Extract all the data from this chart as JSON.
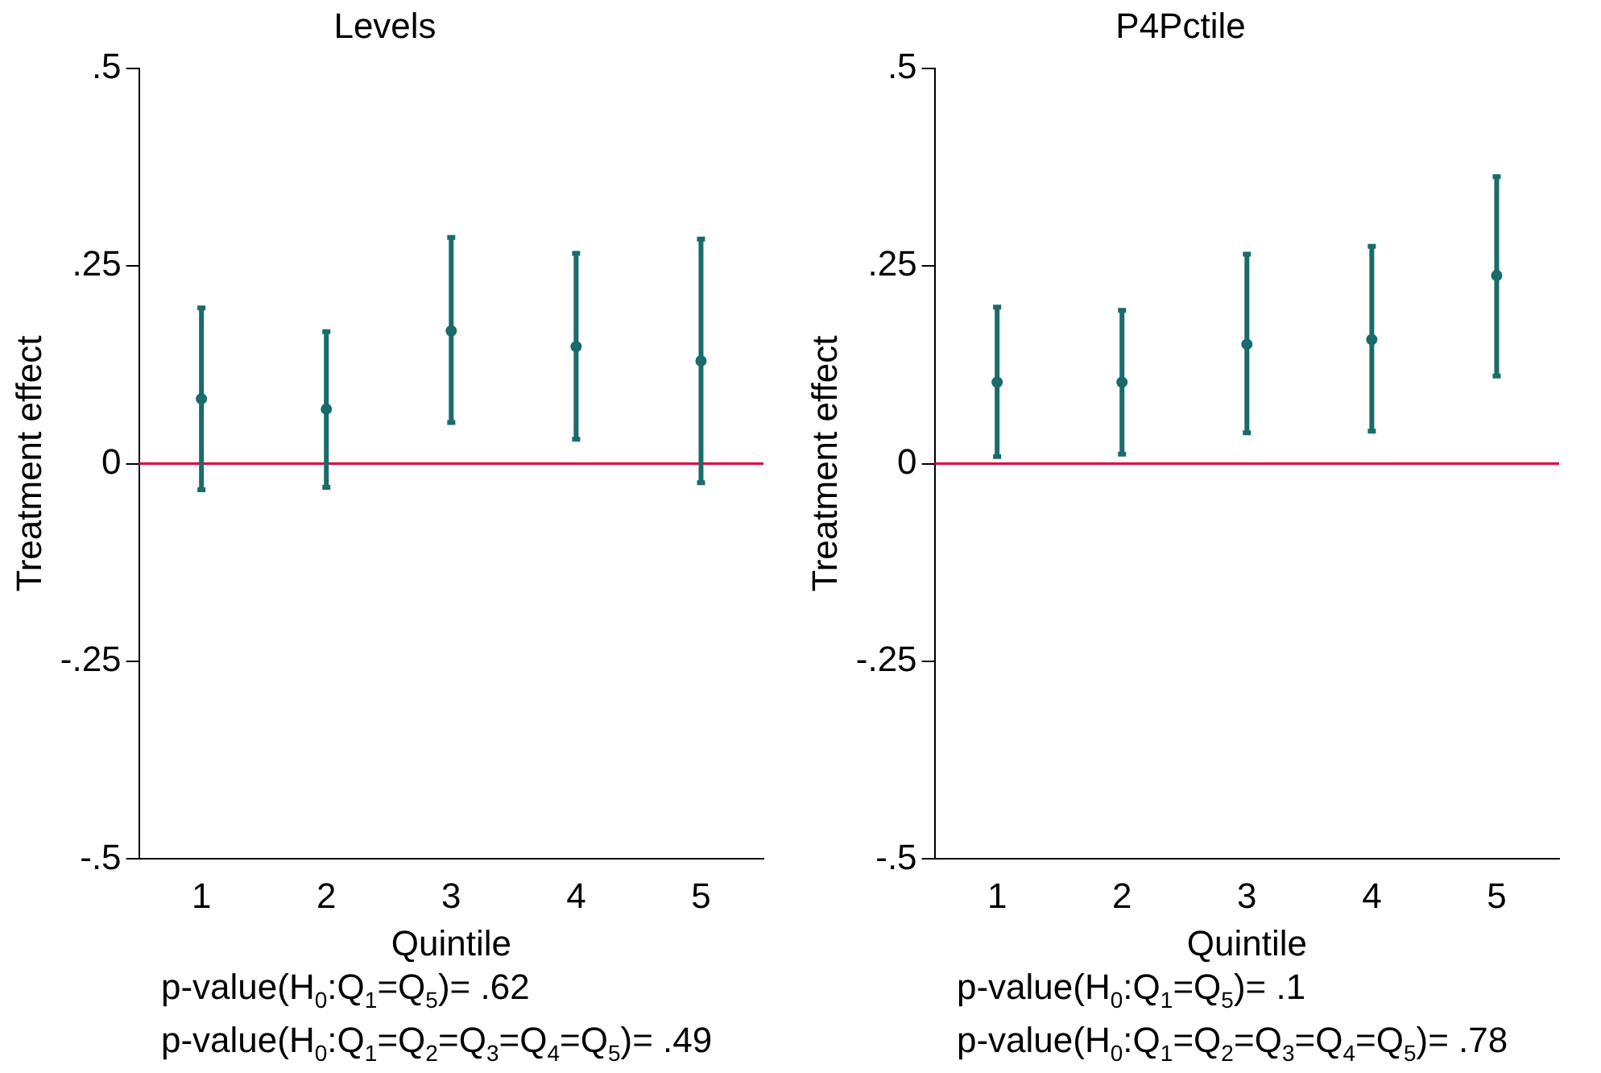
{
  "chart_data": [
    {
      "type": "scatter",
      "title": "Levels",
      "xlabel": "Quintile",
      "ylabel": "Treatment effect",
      "categories": [
        "1",
        "2",
        "3",
        "4",
        "5"
      ],
      "marker": "circle",
      "series": [
        {
          "color": "#1a6b6b",
          "values": [
            0.082,
            0.069,
            0.168,
            0.148,
            0.13
          ],
          "errors": [
            [
              -0.033,
              0.197
            ],
            [
              -0.03,
              0.167
            ],
            [
              0.052,
              0.286
            ],
            [
              0.031,
              0.266
            ],
            [
              -0.024,
              0.284
            ]
          ]
        }
      ],
      "ylim": [
        -0.5,
        0.5
      ],
      "yticks": [
        {
          "value": -0.5,
          "label": "-.5"
        },
        {
          "value": -0.25,
          "label": "-.25"
        },
        0,
        {
          "value": 0.25,
          "label": ".25"
        },
        {
          "value": 0.5,
          "label": ".5"
        }
      ],
      "ref_lines": [
        {
          "axis": "y",
          "value": 0,
          "color": "#e4003a"
        }
      ],
      "annotations": [
        "p-value(H$_{0}$:Q$_{1}$=Q$_{5}$)= .62",
        "p-value(H$_{0}$:Q$_{1}$=Q$_{2}$=Q$_{3}$=Q$_{4}$=Q$_{5}$)= .49"
      ]
    },
    {
      "type": "scatter",
      "title": "P4Pctile",
      "xlabel": "Quintile",
      "ylabel": "Treatment effect",
      "categories": [
        "1",
        "2",
        "3",
        "4",
        "5"
      ],
      "marker": "circle",
      "series": [
        {
          "color": "#1a6b6b",
          "values": [
            0.103,
            0.103,
            0.151,
            0.157,
            0.238
          ],
          "errors": [
            [
              0.009,
              0.198
            ],
            [
              0.012,
              0.194
            ],
            [
              0.039,
              0.265
            ],
            [
              0.041,
              0.275
            ],
            [
              0.111,
              0.363
            ]
          ]
        }
      ],
      "ylim": [
        -0.5,
        0.5
      ],
      "yticks": [
        {
          "value": -0.5,
          "label": "-.5"
        },
        {
          "value": -0.25,
          "label": "-.25"
        },
        0,
        {
          "value": 0.25,
          "label": ".25"
        },
        {
          "value": 0.5,
          "label": ".5"
        }
      ],
      "ref_lines": [
        {
          "axis": "y",
          "value": 0,
          "color": "#e4003a"
        }
      ],
      "annotations": [
        "p-value(H$_{0}$:Q$_{1}$=Q$_{5}$)= .1",
        "p-value(H$_{0}$:Q$_{1}$=Q$_{2}$=Q$_{3}$=Q$_{4}$=Q$_{5}$)= .78"
      ]
    }
  ]
}
